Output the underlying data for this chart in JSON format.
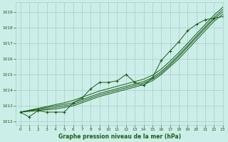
{
  "title": "Graphe pression niveau de la mer (hPa)",
  "background_color": "#cceee8",
  "grid_color": "#aacccc",
  "line_color": "#1a5c1a",
  "xlim": [
    -0.5,
    23
  ],
  "ylim": [
    1011.8,
    1019.6
  ],
  "yticks": [
    1012,
    1013,
    1014,
    1015,
    1016,
    1017,
    1018,
    1019
  ],
  "xticks": [
    0,
    1,
    2,
    3,
    4,
    5,
    6,
    7,
    8,
    9,
    10,
    11,
    12,
    13,
    14,
    15,
    16,
    17,
    18,
    19,
    20,
    21,
    22,
    23
  ],
  "hours": [
    0,
    1,
    2,
    3,
    4,
    5,
    6,
    7,
    8,
    9,
    10,
    11,
    12,
    13,
    14,
    15,
    16,
    17,
    18,
    19,
    20,
    21,
    22,
    23
  ],
  "line_measured": [
    1012.6,
    1012.3,
    1012.7,
    1012.6,
    1012.6,
    1012.6,
    1013.2,
    1013.5,
    1014.1,
    1014.5,
    1014.5,
    1014.6,
    1015.0,
    1014.5,
    1014.3,
    1014.8,
    1015.9,
    1016.5,
    1017.1,
    1017.8,
    1018.2,
    1018.5,
    1018.6,
    1018.7
  ],
  "line_trend1": [
    1012.6,
    1012.65,
    1012.7,
    1012.75,
    1012.8,
    1012.9,
    1013.0,
    1013.2,
    1013.4,
    1013.6,
    1013.75,
    1013.9,
    1014.05,
    1014.2,
    1014.35,
    1014.6,
    1015.0,
    1015.5,
    1016.0,
    1016.6,
    1017.2,
    1017.8,
    1018.4,
    1018.85
  ],
  "line_trend2": [
    1012.6,
    1012.68,
    1012.75,
    1012.82,
    1012.9,
    1013.0,
    1013.1,
    1013.3,
    1013.5,
    1013.7,
    1013.85,
    1014.0,
    1014.15,
    1014.3,
    1014.45,
    1014.7,
    1015.1,
    1015.6,
    1016.15,
    1016.75,
    1017.35,
    1017.95,
    1018.55,
    1019.0
  ],
  "line_trend3": [
    1012.6,
    1012.7,
    1012.8,
    1012.9,
    1013.0,
    1013.1,
    1013.2,
    1013.4,
    1013.6,
    1013.8,
    1013.95,
    1014.1,
    1014.25,
    1014.4,
    1014.55,
    1014.8,
    1015.2,
    1015.7,
    1016.25,
    1016.85,
    1017.45,
    1018.05,
    1018.65,
    1019.15
  ],
  "line_upper": [
    1012.6,
    1012.72,
    1012.84,
    1012.96,
    1013.08,
    1013.2,
    1013.35,
    1013.55,
    1013.75,
    1013.95,
    1014.1,
    1014.25,
    1014.4,
    1014.55,
    1014.7,
    1014.95,
    1015.35,
    1015.85,
    1016.4,
    1017.0,
    1017.6,
    1018.2,
    1018.8,
    1019.3
  ]
}
